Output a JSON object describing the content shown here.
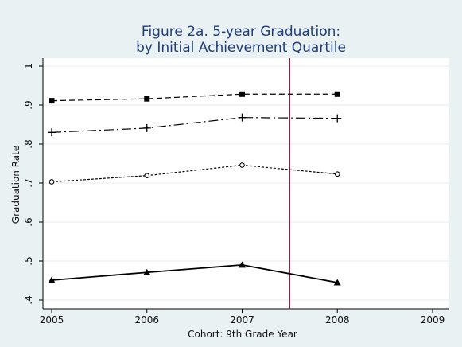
{
  "chart_data": {
    "type": "line",
    "title": "Figure 2a. 5-year Graduation:",
    "subtitle": "by Initial Achievement Quartile",
    "xlabel": "Cohort: 9th Grade Year",
    "ylabel": "Graduation Rate",
    "xlim": [
      2005,
      2009
    ],
    "ylim": [
      0.4,
      1.0
    ],
    "x_ticks": [
      "2005",
      "2006",
      "2007",
      "2008",
      "2009"
    ],
    "y_ticks": [
      ".4",
      ".5",
      ".6",
      ".7",
      ".8",
      ".9",
      "1"
    ],
    "grid": true,
    "vline_x": 2007.5,
    "colors": {
      "background": "#eaf1f3",
      "plot_bg": "#ffffff",
      "grid": "#e4ecee",
      "series": "#000000",
      "vline": "#9b1b4b",
      "title": "#1f3d7a"
    },
    "x": [
      2005,
      2006,
      2007,
      2008
    ],
    "series": [
      {
        "values": [
          0.911,
          0.916,
          0.928,
          0.928
        ],
        "marker": "square",
        "dash": "dashed"
      },
      {
        "values": [
          0.83,
          0.841,
          0.868,
          0.866
        ],
        "marker": "plus",
        "dash": "dashdot"
      },
      {
        "values": [
          0.703,
          0.719,
          0.746,
          0.723
        ],
        "marker": "circle",
        "dash": "dotted"
      },
      {
        "values": [
          0.451,
          0.471,
          0.49,
          0.445
        ],
        "marker": "triangle",
        "dash": "solid"
      }
    ]
  }
}
